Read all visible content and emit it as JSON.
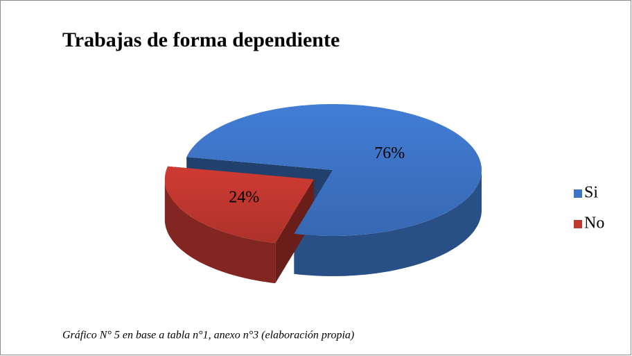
{
  "chart_data": {
    "type": "pie",
    "title": "Trabajas de forma dependiente",
    "categories": [
      "Si",
      "No"
    ],
    "values": [
      76,
      24
    ],
    "value_labels": [
      "76%",
      "24%"
    ],
    "colors": [
      "#3d74c6",
      "#c0372f"
    ],
    "legend": "right",
    "three_d": true,
    "caption": "Gráfico N° 5 en base a tabla n°1, anexo n°3 (elaboración propia)"
  }
}
